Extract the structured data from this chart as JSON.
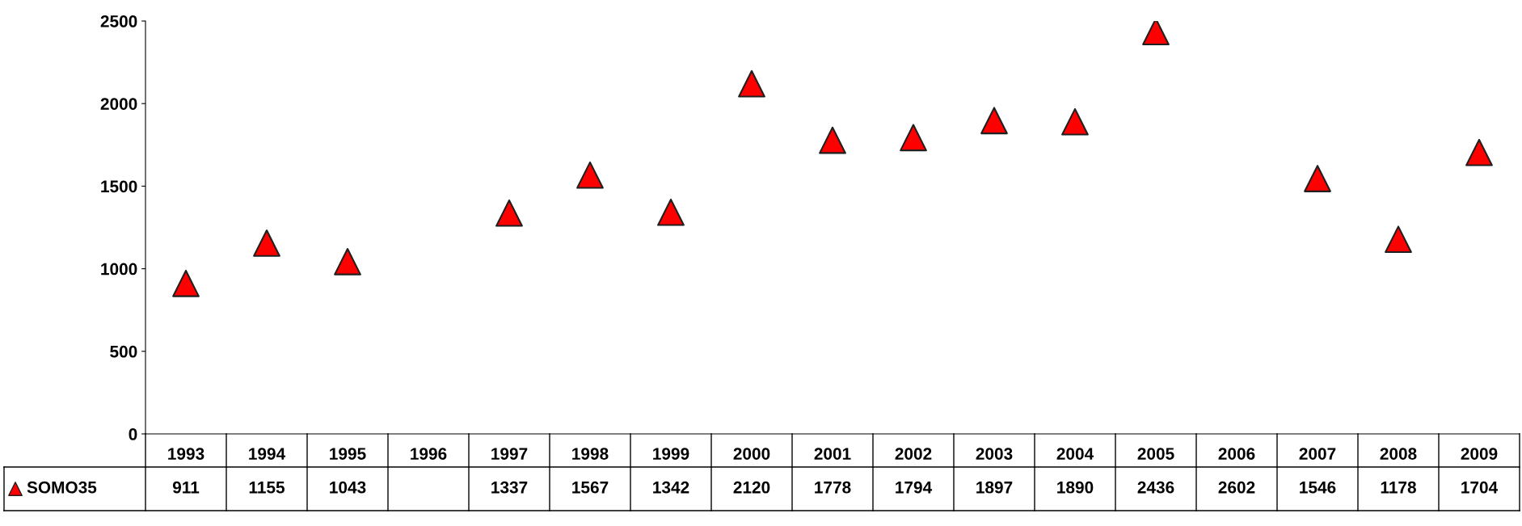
{
  "chart_data": {
    "type": "scatter",
    "categories": [
      "1993",
      "1994",
      "1995",
      "1996",
      "1997",
      "1998",
      "1999",
      "2000",
      "2001",
      "2002",
      "2003",
      "2004",
      "2005",
      "2006",
      "2007",
      "2008",
      "2009"
    ],
    "series": [
      {
        "name": "SOMO35",
        "color": "#ff0000",
        "values": [
          911,
          1155,
          1043,
          null,
          1337,
          1567,
          1342,
          2120,
          1778,
          1794,
          1897,
          1890,
          2436,
          null,
          1546,
          1178,
          1704
        ],
        "value_labels": [
          "911",
          "1155",
          "1043",
          null,
          "1337",
          "1567",
          "1342",
          "2120",
          "1778",
          "1794",
          "1897",
          "1890",
          "2436",
          "2602",
          "1546",
          "1178",
          "1704"
        ]
      }
    ],
    "ylim": [
      0,
      2500
    ],
    "yticks": [
      0,
      500,
      1000,
      1500,
      2000,
      2500
    ],
    "marker": "triangle",
    "grid": false,
    "legend": "bottom left"
  }
}
